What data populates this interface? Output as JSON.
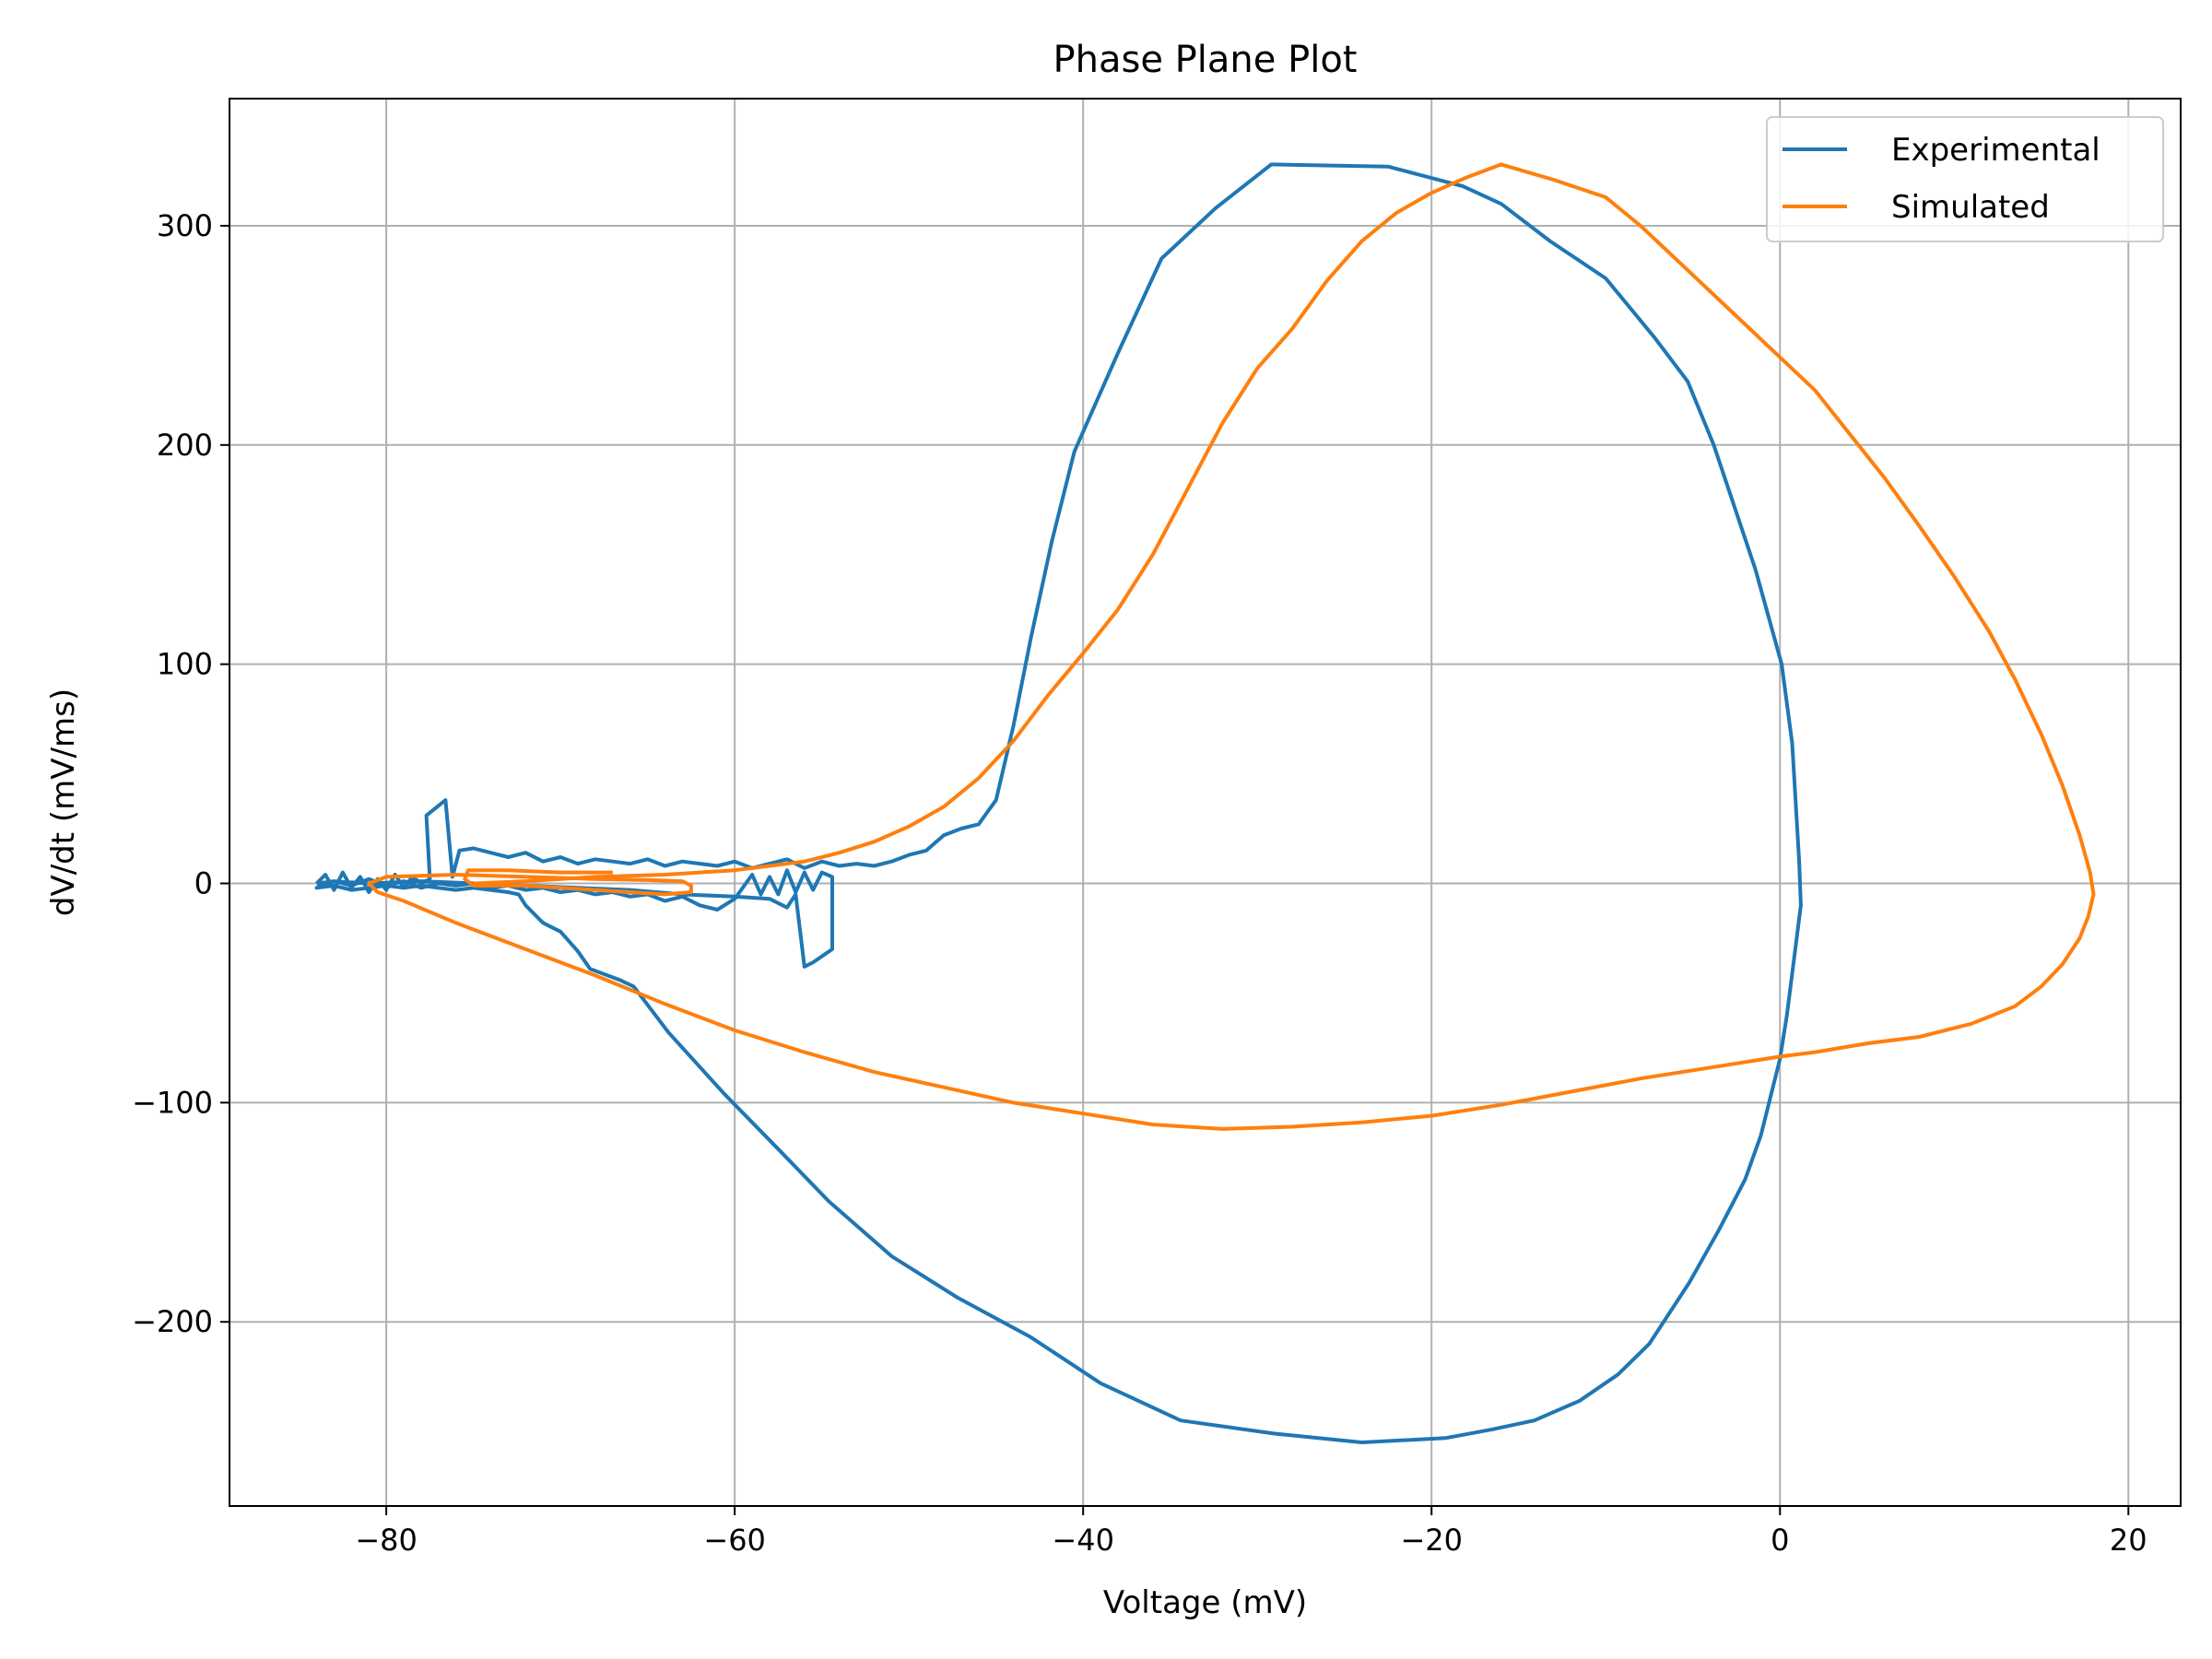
{
  "chart_data": {
    "type": "line",
    "title": "Phase Plane Plot",
    "xlabel": "Voltage (mV)",
    "ylabel": "dV/dt (mV/ms)",
    "xlim": [
      -89,
      23
    ],
    "ylim": [
      -284,
      358
    ],
    "xticks": [
      -80,
      -60,
      -40,
      -20,
      0,
      20
    ],
    "xtick_labels": [
      "−80",
      "−60",
      "−40",
      "−20",
      "0",
      "20"
    ],
    "yticks": [
      -200,
      -100,
      0,
      100,
      200,
      300
    ],
    "ytick_labels": [
      "−200",
      "−100",
      "0",
      "100",
      "200",
      "300"
    ],
    "grid": true,
    "legend_position": "top-right",
    "series": [
      {
        "name": "Experimental",
        "color": "#1f77b4",
        "points": [
          [
            -84,
            0
          ],
          [
            -83.5,
            4
          ],
          [
            -83,
            -3
          ],
          [
            -82.5,
            5
          ],
          [
            -82,
            -2
          ],
          [
            -81.5,
            3
          ],
          [
            -81,
            -4
          ],
          [
            -80.5,
            2
          ],
          [
            -80,
            -3
          ],
          [
            -79.5,
            4
          ],
          [
            -79,
            -2
          ],
          [
            -78.5,
            3
          ],
          [
            -78,
            0
          ],
          [
            -77.5,
            2
          ],
          [
            -77.7,
            31
          ],
          [
            -76.6,
            38
          ],
          [
            -76.2,
            3
          ],
          [
            -75.8,
            15
          ],
          [
            -75,
            16
          ],
          [
            -74,
            14
          ],
          [
            -73,
            12
          ],
          [
            -72,
            14
          ],
          [
            -71,
            10
          ],
          [
            -70,
            12
          ],
          [
            -69,
            9
          ],
          [
            -68,
            11
          ],
          [
            -67,
            10
          ],
          [
            -66,
            9
          ],
          [
            -65,
            11
          ],
          [
            -64,
            8
          ],
          [
            -63,
            10
          ],
          [
            -62,
            9
          ],
          [
            -61,
            8
          ],
          [
            -60,
            10
          ],
          [
            -59,
            7
          ],
          [
            -58,
            9
          ],
          [
            -57,
            11
          ],
          [
            -56,
            7
          ],
          [
            -55,
            10
          ],
          [
            -54,
            8
          ],
          [
            -53,
            9
          ],
          [
            -52,
            8
          ],
          [
            -51,
            10
          ],
          [
            -50,
            13
          ],
          [
            -49,
            15
          ],
          [
            -48,
            22
          ],
          [
            -47,
            25
          ],
          [
            -46,
            27
          ],
          [
            -45,
            38
          ],
          [
            -44,
            72
          ],
          [
            -43,
            112
          ],
          [
            -41.8,
            156
          ],
          [
            -40.5,
            197
          ],
          [
            -38,
            242
          ],
          [
            -35.5,
            285
          ],
          [
            -32.4,
            308
          ],
          [
            -29.2,
            328
          ],
          [
            -22.5,
            327
          ],
          [
            -18.2,
            318
          ],
          [
            -16,
            310
          ],
          [
            -13.2,
            293
          ],
          [
            -10,
            276
          ],
          [
            -7.2,
            249
          ],
          [
            -5.3,
            229
          ],
          [
            -3.8,
            200
          ],
          [
            -1.4,
            143
          ],
          [
            0.1,
            100
          ],
          [
            0.7,
            64
          ],
          [
            1.1,
            10
          ],
          [
            1.2,
            -10
          ],
          [
            0.4,
            -60
          ],
          [
            0,
            -80
          ],
          [
            -1.1,
            -115
          ],
          [
            -2,
            -135
          ],
          [
            -3.5,
            -158
          ],
          [
            -5.2,
            -182
          ],
          [
            -7.5,
            -210
          ],
          [
            -9.3,
            -224
          ],
          [
            -11.5,
            -236
          ],
          [
            -14.1,
            -245
          ],
          [
            -16.5,
            -249
          ],
          [
            -19.2,
            -253
          ],
          [
            -24,
            -255
          ],
          [
            -29,
            -251
          ],
          [
            -34.4,
            -245
          ],
          [
            -39,
            -228
          ],
          [
            -43,
            -207
          ],
          [
            -47.2,
            -189
          ],
          [
            -51,
            -170
          ],
          [
            -54.6,
            -145
          ],
          [
            -57.4,
            -122
          ],
          [
            -60.6,
            -96
          ],
          [
            -63.8,
            -68
          ],
          [
            -65.8,
            -47
          ],
          [
            -66.6,
            -44
          ],
          [
            -68.3,
            -39
          ],
          [
            -69,
            -31
          ],
          [
            -70,
            -22
          ],
          [
            -71,
            -18
          ],
          [
            -72,
            -10
          ],
          [
            -72.4,
            -5
          ],
          [
            -73,
            -4
          ],
          [
            -74,
            -3
          ],
          [
            -75,
            -2
          ],
          [
            -76,
            -3
          ],
          [
            -77,
            -2
          ],
          [
            -78,
            -1
          ],
          [
            -79,
            -2
          ],
          [
            -80,
            -1
          ],
          [
            -81,
            -2
          ],
          [
            -82,
            -3
          ],
          [
            -83,
            -1
          ],
          [
            -84,
            -2
          ],
          [
            -83,
            1
          ],
          [
            -81,
            0
          ],
          [
            -78,
            1
          ],
          [
            -75,
            0
          ],
          [
            -72,
            -1
          ],
          [
            -69,
            -2
          ],
          [
            -66,
            -3
          ],
          [
            -63,
            -5
          ],
          [
            -60,
            -6
          ],
          [
            -58,
            -7
          ],
          [
            -57,
            -11
          ],
          [
            -56.5,
            -5
          ],
          [
            -56,
            -38
          ],
          [
            -55.5,
            -36
          ],
          [
            -54.4,
            -30
          ],
          [
            -54.4,
            3
          ],
          [
            -55,
            5
          ],
          [
            -55.5,
            -3
          ],
          [
            -56,
            5
          ],
          [
            -56.5,
            -4
          ],
          [
            -57,
            6
          ],
          [
            -57.5,
            -5
          ],
          [
            -58,
            3
          ],
          [
            -58.5,
            -5
          ],
          [
            -59,
            4
          ],
          [
            -60,
            -7
          ],
          [
            -61,
            -12
          ],
          [
            -62,
            -10
          ],
          [
            -63,
            -6
          ],
          [
            -64,
            -8
          ],
          [
            -65,
            -5
          ],
          [
            -66,
            -6
          ],
          [
            -67,
            -4
          ],
          [
            -68,
            -5
          ],
          [
            -69,
            -3
          ],
          [
            -70,
            -4
          ],
          [
            -71,
            -2
          ],
          [
            -72,
            -3
          ],
          [
            -73,
            -1
          ],
          [
            -74,
            -2
          ],
          [
            -75,
            0
          ],
          [
            -76,
            -1
          ],
          [
            -77,
            0
          ],
          [
            -78,
            -2
          ],
          [
            -79,
            1
          ],
          [
            -80,
            -1
          ],
          [
            -81,
            2
          ],
          [
            -82,
            -1
          ],
          [
            -83,
            1
          ],
          [
            -84,
            0
          ]
        ]
      },
      {
        "name": "Simulated",
        "color": "#ff7f0e",
        "points": [
          [
            -75,
            0
          ],
          [
            -72,
            1
          ],
          [
            -70,
            2
          ],
          [
            -68,
            3
          ],
          [
            -66,
            3.5
          ],
          [
            -64,
            4
          ],
          [
            -62,
            5
          ],
          [
            -60,
            6
          ],
          [
            -58,
            8
          ],
          [
            -56,
            10
          ],
          [
            -54,
            14
          ],
          [
            -52,
            19
          ],
          [
            -50,
            26
          ],
          [
            -48,
            35
          ],
          [
            -46,
            48
          ],
          [
            -44,
            65
          ],
          [
            -42,
            86
          ],
          [
            -40,
            105
          ],
          [
            -38,
            125
          ],
          [
            -36,
            150
          ],
          [
            -34,
            180
          ],
          [
            -32,
            210
          ],
          [
            -30,
            235
          ],
          [
            -28,
            253
          ],
          [
            -26,
            275
          ],
          [
            -24,
            293
          ],
          [
            -22,
            306
          ],
          [
            -20,
            315
          ],
          [
            -18,
            322
          ],
          [
            -16,
            328
          ],
          [
            -13,
            321
          ],
          [
            -10,
            313
          ],
          [
            -8,
            300
          ],
          [
            -6,
            285
          ],
          [
            -4,
            270
          ],
          [
            -2,
            255
          ],
          [
            0,
            240
          ],
          [
            2,
            225
          ],
          [
            4,
            205
          ],
          [
            6,
            185
          ],
          [
            8,
            163
          ],
          [
            10,
            140
          ],
          [
            12,
            115
          ],
          [
            13.5,
            93
          ],
          [
            15,
            68
          ],
          [
            16.2,
            45
          ],
          [
            17.2,
            22
          ],
          [
            17.8,
            5
          ],
          [
            18,
            -5
          ],
          [
            17.7,
            -15
          ],
          [
            17.2,
            -25
          ],
          [
            16.2,
            -37
          ],
          [
            15,
            -47
          ],
          [
            13.5,
            -56
          ],
          [
            11,
            -64
          ],
          [
            8,
            -70
          ],
          [
            5,
            -73
          ],
          [
            2,
            -77
          ],
          [
            0,
            -79
          ],
          [
            -4,
            -84
          ],
          [
            -8,
            -89
          ],
          [
            -12,
            -95
          ],
          [
            -16,
            -101
          ],
          [
            -20,
            -106
          ],
          [
            -24,
            -109
          ],
          [
            -28,
            -111
          ],
          [
            -32,
            -112
          ],
          [
            -36,
            -110
          ],
          [
            -40,
            -105
          ],
          [
            -44,
            -100
          ],
          [
            -48,
            -93
          ],
          [
            -52,
            -86
          ],
          [
            -56,
            -77
          ],
          [
            -60,
            -67
          ],
          [
            -64,
            -55
          ],
          [
            -68,
            -42
          ],
          [
            -72,
            -30
          ],
          [
            -76,
            -18
          ],
          [
            -79,
            -8
          ],
          [
            -80.5,
            -4
          ],
          [
            -81,
            0
          ],
          [
            -80,
            3
          ],
          [
            -76,
            4
          ],
          [
            -72,
            3
          ],
          [
            -68,
            2
          ],
          [
            -65,
            1.5
          ],
          [
            -63,
            1
          ],
          [
            -62.5,
            -1
          ],
          [
            -62.5,
            -4
          ],
          [
            -64,
            -5
          ],
          [
            -66,
            -4
          ],
          [
            -68,
            -3
          ],
          [
            -70,
            -2
          ],
          [
            -72,
            -1
          ],
          [
            -74,
            -1
          ],
          [
            -75,
            -1
          ],
          [
            -75.5,
            2
          ],
          [
            -75.3,
            6
          ],
          [
            -73,
            6
          ],
          [
            -70,
            5
          ],
          [
            -67,
            5
          ]
        ]
      }
    ]
  }
}
